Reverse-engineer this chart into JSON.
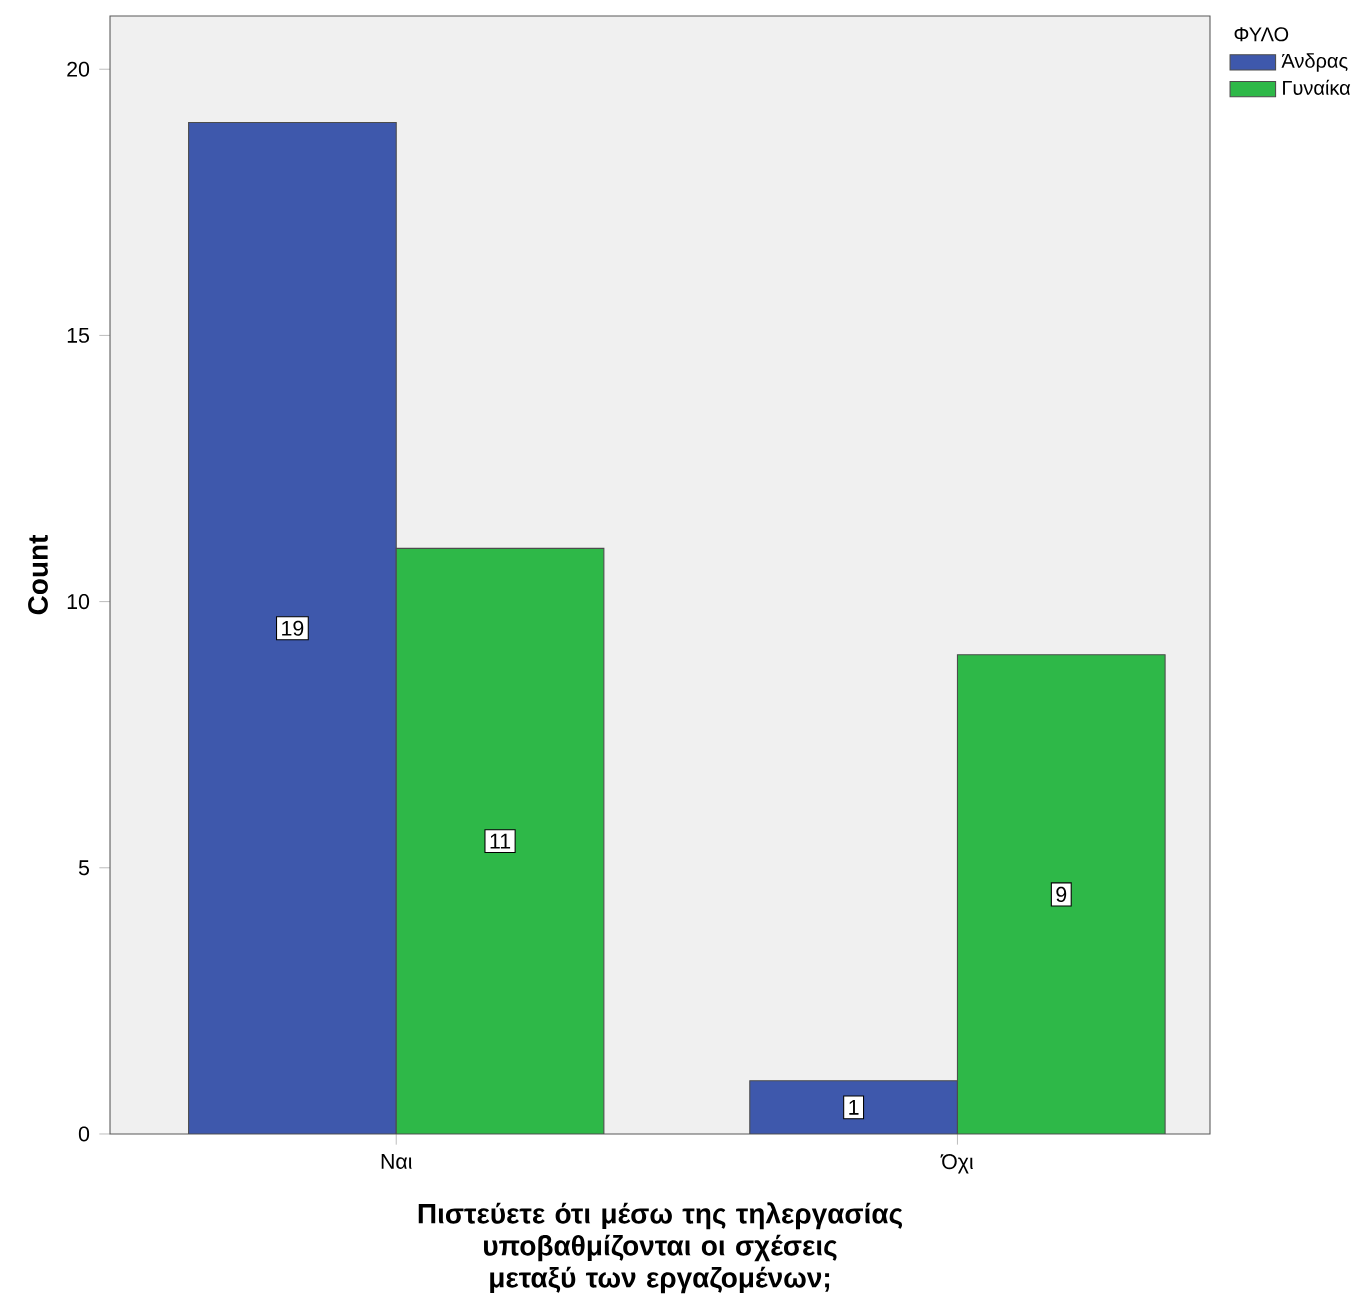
{
  "chart_data": {
    "type": "bar",
    "xlabel": "Πιστεύετε ότι μέσω της τηλεργασίας υποβαθμίζονται οι σχέσεις μεταξύ των εργαζομένων;",
    "ylabel": "Count",
    "legend_title": "ΦΥΛΟ",
    "categories": [
      "Ναι",
      "Όχι"
    ],
    "series": [
      {
        "name": "Άνδρας",
        "color": "#3e58ac",
        "values": [
          19,
          1
        ]
      },
      {
        "name": "Γυναίκα",
        "color": "#2eb848",
        "values": [
          11,
          9
        ]
      }
    ],
    "ylim": [
      0,
      21
    ],
    "yticks": [
      0,
      5,
      10,
      15,
      20
    ],
    "data_labels": true,
    "legend": "top right",
    "grid": false
  }
}
